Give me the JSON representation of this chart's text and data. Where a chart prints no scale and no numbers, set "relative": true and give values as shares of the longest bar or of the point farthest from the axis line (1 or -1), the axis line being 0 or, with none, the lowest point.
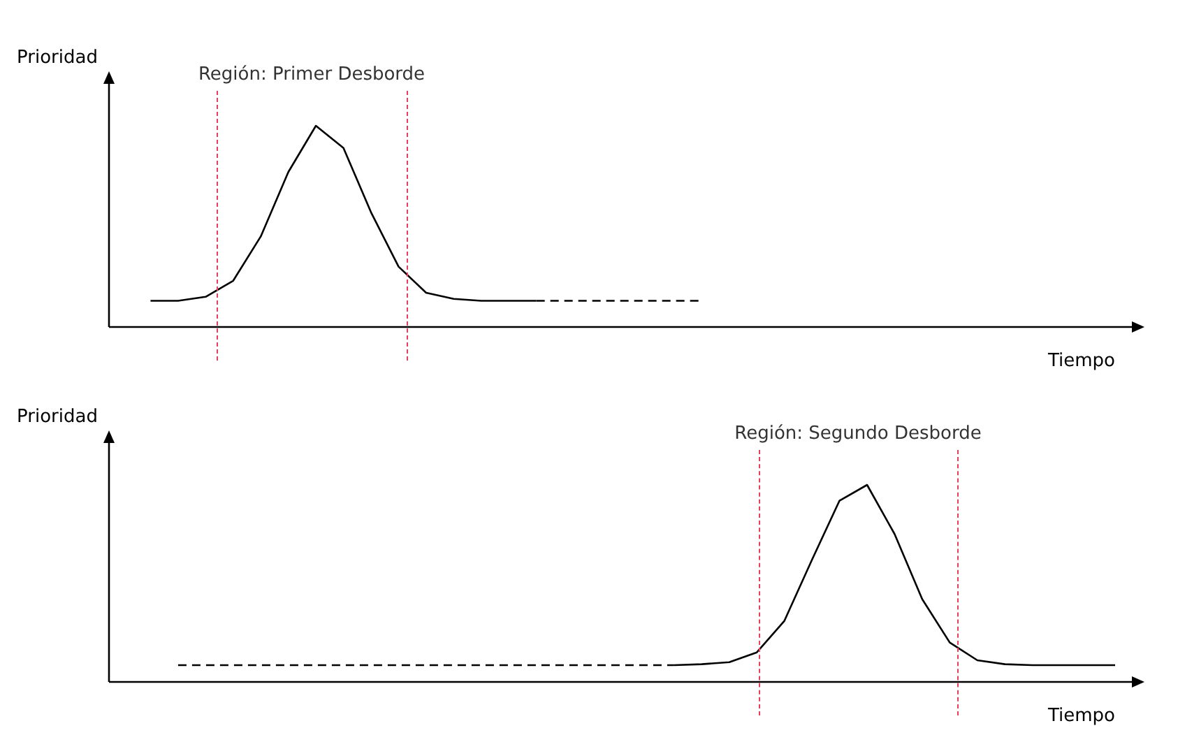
{
  "chart_data": [
    {
      "type": "line",
      "relative": true,
      "ylabel": "Prioridad",
      "xlabel": "Tiempo",
      "categories": [
        null,
        null,
        null,
        null,
        null,
        null,
        null,
        null,
        null,
        null,
        null,
        null,
        null,
        null,
        null,
        null,
        null,
        null,
        null,
        null,
        null,
        null,
        null,
        null,
        null,
        null,
        null,
        null,
        null,
        null,
        null,
        null,
        null,
        null,
        null,
        null,
        null
      ],
      "series": [
        {
          "color": "#000000",
          "line_style": "solid",
          "values": [
            null,
            0.13,
            0.13,
            0.15,
            0.23,
            0.45,
            0.77,
            1,
            0.89,
            0.57,
            0.3,
            0.17,
            0.14,
            0.13,
            0.13,
            0.13,
            null,
            null,
            null,
            null,
            null,
            null,
            null,
            null,
            null,
            null,
            null,
            null,
            null,
            null,
            null,
            null,
            null,
            null,
            null,
            null,
            null
          ]
        },
        {
          "color": "#000000",
          "line_style": "dashed",
          "values": [
            null,
            null,
            null,
            null,
            null,
            null,
            null,
            null,
            null,
            null,
            null,
            null,
            null,
            null,
            null,
            0.13,
            0.13,
            0.13,
            0.13,
            0.13,
            0.13,
            0.13,
            null,
            null,
            null,
            null,
            null,
            null,
            null,
            null,
            null,
            null,
            null,
            null,
            null,
            null,
            null
          ]
        }
      ],
      "annotations": [
        "Región: Primer Desborde"
      ],
      "legend": false,
      "marker": "none"
    },
    {
      "type": "line",
      "relative": true,
      "ylabel": "Prioridad",
      "xlabel": "Tiempo",
      "categories": [
        null,
        null,
        null,
        null,
        null,
        null,
        null,
        null,
        null,
        null,
        null,
        null,
        null,
        null,
        null,
        null,
        null,
        null,
        null,
        null,
        null,
        null,
        null,
        null,
        null,
        null,
        null,
        null,
        null,
        null,
        null,
        null,
        null,
        null,
        null,
        null,
        null
      ],
      "series": [
        {
          "color": "#000000",
          "line_style": "dashed",
          "values": [
            null,
            null,
            0.085,
            0.085,
            0.085,
            0.085,
            0.085,
            0.085,
            0.085,
            0.085,
            0.085,
            0.085,
            0.085,
            0.085,
            0.085,
            0.085,
            0.085,
            0.085,
            0.085,
            0.085,
            0.085,
            null,
            null,
            null,
            null,
            null,
            null,
            null,
            null,
            null,
            null,
            null,
            null,
            null,
            null,
            null,
            null
          ]
        },
        {
          "color": "#000000",
          "line_style": "solid",
          "values": [
            null,
            null,
            null,
            null,
            null,
            null,
            null,
            null,
            null,
            null,
            null,
            null,
            null,
            null,
            null,
            null,
            null,
            null,
            null,
            null,
            0.085,
            0.09,
            0.1,
            0.15,
            0.31,
            0.62,
            0.92,
            1,
            0.75,
            0.42,
            0.2,
            0.11,
            0.09,
            0.085,
            0.085,
            0.085,
            0.085
          ]
        }
      ],
      "annotations": [
        "Región: Segundo Desborde"
      ],
      "legend": false,
      "marker": "none"
    }
  ]
}
